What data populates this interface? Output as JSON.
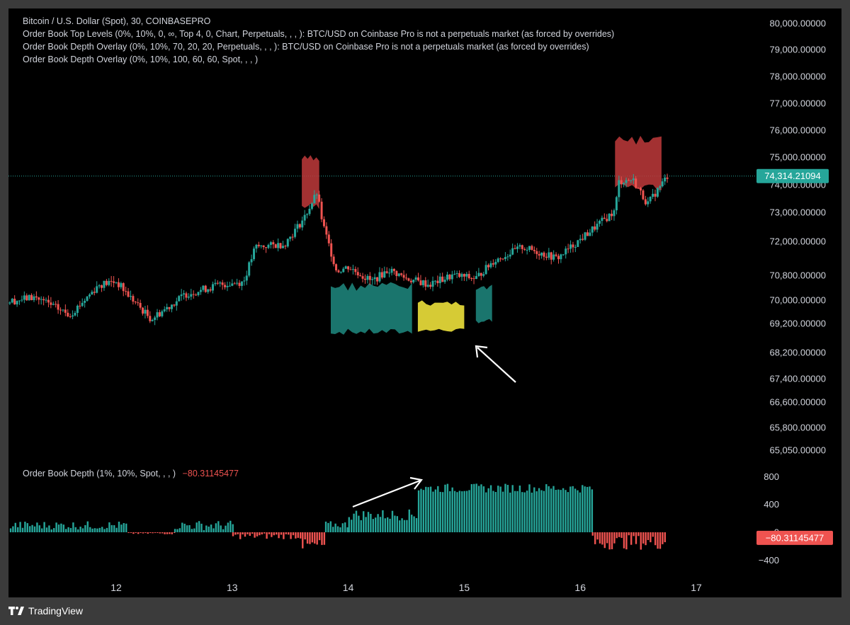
{
  "legend": {
    "main": "Bitcoin / U.S. Dollar (Spot), 30, COINBASEPRO",
    "ind1": "Order Book Top Levels (0%, 10%, 0, ∞, Top 4, 0, Chart, Perpetuals, , , ): BTC/USD on Coinbase Pro is not a perpetuals market (as forced by overrides)",
    "ind2": "Order Book Depth Overlay (0%, 10%, 70, 20, 20, Perpetuals, , , ): BTC/USD on Coinbase Pro is not a perpetuals market (as forced by overrides)",
    "ind3": "Order Book Depth Overlay (0%, 10%, 100, 60, 60, Spot, , , )"
  },
  "oscillator": {
    "title": "Order Book Depth (1%, 10%, Spot, , , )",
    "value": "−80.31145477"
  },
  "last_price_label": "74,314.21094",
  "osc_value_label": "−80.31145477",
  "branding": {
    "name": "TradingView"
  },
  "colors": {
    "up": "#26a69a",
    "down": "#ef5350",
    "yellow": "#e8dc3a",
    "teal_band": "#1f8a80",
    "red_band": "#c0393b",
    "background": "#000000",
    "text": "#d1d4dc"
  },
  "chart_data": [
    {
      "type": "candlestick",
      "title": "Bitcoin / U.S. Dollar (Spot), 30, COINBASEPRO",
      "x_ticks": [
        "12",
        "13",
        "14",
        "15",
        "16",
        "17"
      ],
      "y_ticks": [
        "80,000.00000",
        "79,000.00000",
        "78,000.00000",
        "77,000.00000",
        "76,000.00000",
        "75,000.00000",
        "74,000.00000",
        "73,000.00000",
        "72,000.00000",
        "70,800.00000",
        "70,000.00000",
        "69,200.00000",
        "68,200.00000",
        "67,400.00000",
        "66,600.00000",
        "65,800.00000",
        "65,050.00000"
      ],
      "last_price": 74314.21094,
      "close_path": [
        [
          11.0,
          69900
        ],
        [
          11.3,
          70100
        ],
        [
          11.6,
          69500
        ],
        [
          11.85,
          70500
        ],
        [
          12.0,
          70600
        ],
        [
          12.3,
          69350
        ],
        [
          12.6,
          70200
        ],
        [
          12.9,
          70500
        ],
        [
          13.1,
          70600
        ],
        [
          13.2,
          71800
        ],
        [
          13.45,
          71900
        ],
        [
          13.62,
          72800
        ],
        [
          13.73,
          73700
        ],
        [
          13.78,
          72600
        ],
        [
          13.9,
          70950
        ],
        [
          14.0,
          71100
        ],
        [
          14.2,
          70600
        ],
        [
          14.35,
          71000
        ],
        [
          14.5,
          70700
        ],
        [
          14.7,
          70500
        ],
        [
          14.9,
          70800
        ],
        [
          15.1,
          70700
        ],
        [
          15.25,
          71300
        ],
        [
          15.5,
          71800
        ],
        [
          15.8,
          71400
        ],
        [
          15.95,
          71900
        ],
        [
          16.1,
          72400
        ],
        [
          16.3,
          73050
        ],
        [
          16.33,
          74100
        ],
        [
          16.45,
          74200
        ],
        [
          16.58,
          73300
        ],
        [
          16.75,
          74314
        ]
      ],
      "annotations": [
        {
          "type": "red_overlay",
          "x_range": [
            13.6,
            13.75
          ],
          "y_range": [
            73100,
            75100
          ]
        },
        {
          "type": "teal_overlay",
          "x_range": [
            13.85,
            14.55
          ],
          "y_range": [
            68800,
            70600
          ]
        },
        {
          "type": "yellow_overlay",
          "x_range": [
            14.6,
            15.0
          ],
          "y_range": [
            68900,
            70000
          ]
        },
        {
          "type": "teal_overlay",
          "x_range": [
            15.1,
            15.24
          ],
          "y_range": [
            69200,
            70500
          ]
        },
        {
          "type": "red_overlay",
          "x_range": [
            16.3,
            16.7
          ],
          "y_range": [
            73800,
            75800
          ]
        },
        {
          "type": "arrow",
          "note": "pointing up-left at the yellow overlay"
        }
      ]
    },
    {
      "type": "bar",
      "title": "Order Book Depth (1%, 10%, Spot, , , )",
      "x_ticks": [
        "12",
        "13",
        "14",
        "15",
        "16",
        "17"
      ],
      "y_ticks": [
        "800",
        "400",
        "0",
        "−400"
      ],
      "last_value": -80.31145477,
      "segments": [
        {
          "x_range": [
            11.0,
            12.1
          ],
          "value_range": [
            40,
            160
          ],
          "sign": "positive"
        },
        {
          "x_range": [
            12.1,
            12.5
          ],
          "value_range": [
            -30,
            0
          ],
          "sign": "mixed"
        },
        {
          "x_range": [
            12.5,
            13.0
          ],
          "value_range": [
            30,
            170
          ],
          "sign": "positive"
        },
        {
          "x_range": [
            13.0,
            13.6
          ],
          "value_range": [
            -100,
            -10
          ],
          "sign": "negative"
        },
        {
          "x_range": [
            13.6,
            13.8
          ],
          "value_range": [
            -280,
            -100
          ],
          "sign": "negative"
        },
        {
          "x_range": [
            13.8,
            14.0
          ],
          "value_range": [
            60,
            160
          ],
          "sign": "positive"
        },
        {
          "x_range": [
            14.0,
            14.6
          ],
          "value_range": [
            170,
            330
          ],
          "sign": "positive"
        },
        {
          "x_range": [
            14.6,
            16.1
          ],
          "value_range": [
            570,
            700
          ],
          "sign": "positive"
        },
        {
          "x_range": [
            16.1,
            16.73
          ],
          "value_range": [
            -250,
            -40
          ],
          "sign": "negative"
        }
      ],
      "annotations": [
        {
          "type": "arrow",
          "note": "pointing up-right toward the jump in positive bars"
        }
      ]
    }
  ]
}
